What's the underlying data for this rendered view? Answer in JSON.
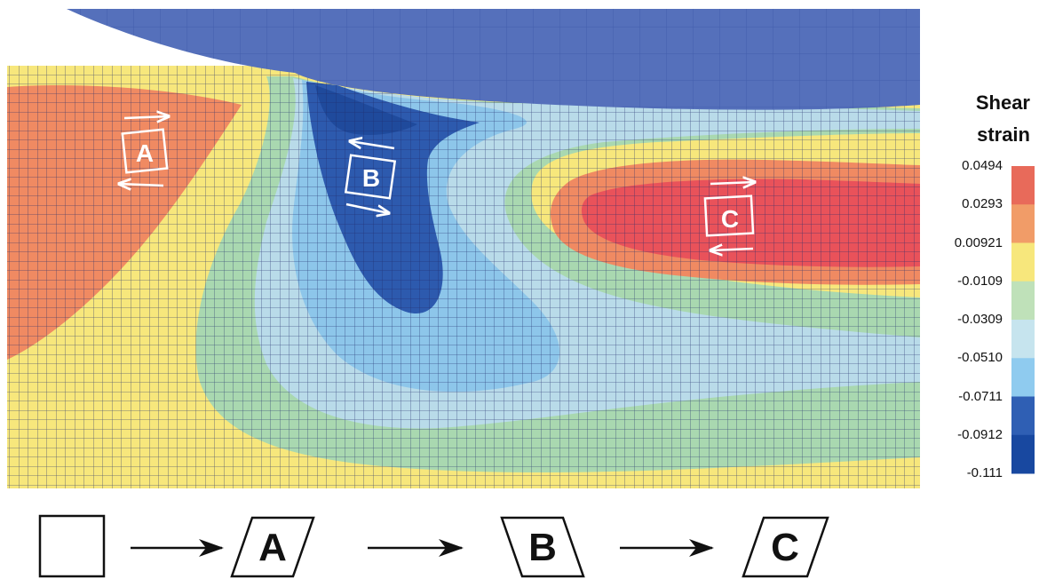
{
  "legend": {
    "title_line1": "Shear",
    "title_line2": "strain",
    "ticks": [
      "0.0494",
      "0.0293",
      "0.00921",
      "-0.0109",
      "-0.0309",
      "-0.0510",
      "-0.0711",
      "-0.0912",
      "-0.111"
    ],
    "colors": [
      "#e86a5a",
      "#f19c68",
      "#f7e77c",
      "#bfe1b9",
      "#c6e4ee",
      "#8fcbef",
      "#2f5fb4",
      "#1848a0"
    ]
  },
  "zones": {
    "a": "A",
    "b": "B",
    "c": "C"
  },
  "sequence": {
    "a": "A",
    "b": "B",
    "c": "C"
  },
  "colors": {
    "tool": "#5570bb",
    "mesh_line": "#1e2a6b",
    "yellow": "#f7e77c",
    "orange": "#f08a62",
    "red": "#e9525a",
    "green": "#a9d8b0",
    "light_blue": "#b9dbe9",
    "mid_blue": "#8dc6ea",
    "dark_blue": "#2d5aae"
  }
}
